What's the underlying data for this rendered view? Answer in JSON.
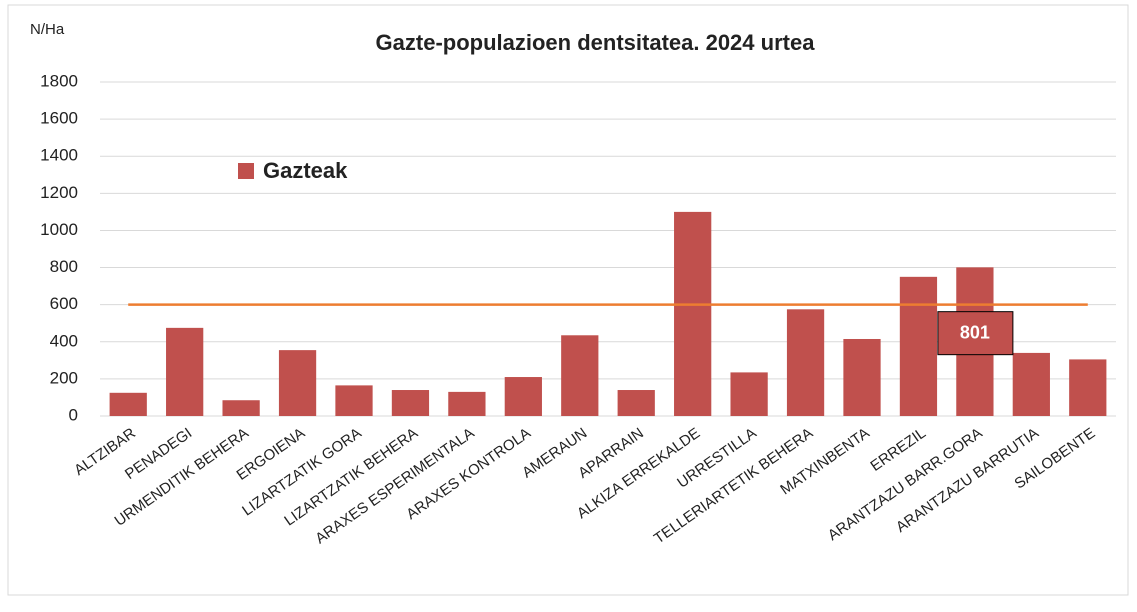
{
  "chart_data": {
    "type": "bar",
    "title": "Gazte-populazioen dentsitatea. 2024 urtea",
    "y_label": "N/Ha",
    "categories": [
      "ALTZIBAR",
      "PENADEGI",
      "URMENDITIK BEHERA",
      "ERGOIENA",
      "LIZARTZATIK GORA",
      "LIZARTZATIK BEHERA",
      "ARAXES ESPERIMENTALA",
      "ARAXES KONTROLA",
      "AMERAUN",
      "APARRAIN",
      "ALKIZA ERREKALDE",
      "URRESTILLA",
      "TELLERIARTETIK BEHERA",
      "MATXINBENTA",
      "ERREZIL",
      "ARANTZAZU BARR.GORA",
      "ARANTZAZU BARRUTIA",
      "SAILOBENTE"
    ],
    "series": [
      {
        "name": "Gazteak",
        "color": "#c0504d",
        "values": [
          125,
          475,
          85,
          355,
          165,
          140,
          130,
          210,
          435,
          140,
          1100,
          235,
          575,
          415,
          750,
          801,
          340,
          305
        ],
        "value_labels": [
          null,
          null,
          null,
          null,
          null,
          null,
          null,
          null,
          null,
          null,
          null,
          null,
          null,
          null,
          null,
          "801",
          null,
          null
        ]
      }
    ],
    "reference_line": {
      "value": 600,
      "color": "#ed7d31"
    },
    "ylim": [
      0,
      1800
    ],
    "yticks": [
      0,
      200,
      400,
      600,
      800,
      1000,
      1200,
      1400,
      1600,
      1800
    ],
    "grid": true,
    "legend": "top-left"
  }
}
